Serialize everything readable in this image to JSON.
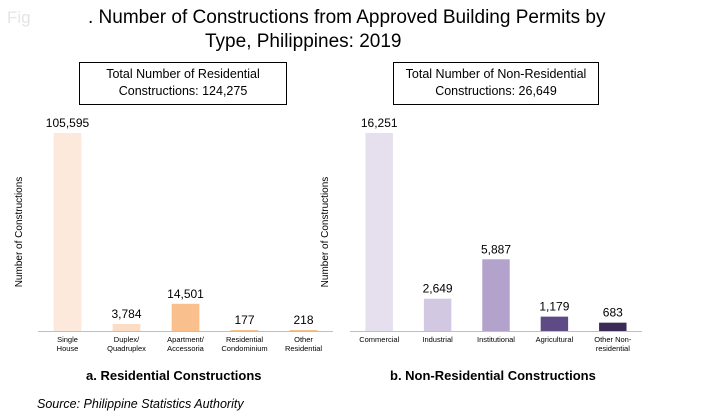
{
  "header": {
    "fig_prefix": "Fig",
    "title_line1": ". Number of Constructions from Approved Building Permits by",
    "title_line2": "Type, Philippines: 2019"
  },
  "boxes": {
    "residential_line1": "Total Number of Residential",
    "residential_line2": "Constructions: 124,275",
    "nonresidential_line1": "Total Number of Non-Residential",
    "nonresidential_line2": "Constructions:  26,649"
  },
  "captions": {
    "a": "a. Residential  Constructions",
    "b": "b. Non-Residential  Constructions"
  },
  "source": "Source: Philippine Statistics Authority",
  "chart_data": [
    {
      "type": "bar",
      "ylabel": "Number of Constructions",
      "categories": [
        [
          "Single",
          "House"
        ],
        [
          "Duplex/",
          "Quadruplex"
        ],
        [
          "Apartment/",
          "Accessoria"
        ],
        [
          "Residential",
          "Condominium"
        ],
        [
          "Other",
          "Residential"
        ]
      ],
      "values": [
        105595,
        3784,
        14501,
        177,
        218
      ],
      "labels": [
        "105,595",
        "3,784",
        "14,501",
        "177",
        "218"
      ],
      "colors": [
        "#fde9dc",
        "#fbdcc4",
        "#f9c08e",
        "#f9c08e",
        "#f9c08e"
      ]
    },
    {
      "type": "bar",
      "ylabel": "Number of Constructions",
      "categories": [
        [
          "Commercial"
        ],
        [
          "Industrial"
        ],
        [
          "Institutional"
        ],
        [
          "Agricultural"
        ],
        [
          "Other Non-",
          "residential"
        ]
      ],
      "values": [
        16251,
        2649,
        5887,
        1179,
        683
      ],
      "labels": [
        "16,251",
        "2,649",
        "5,887",
        "1,179",
        "683"
      ],
      "colors": [
        "#e6e0ee",
        "#d2c8e2",
        "#b2a2cc",
        "#5e4a85",
        "#3b2b57"
      ]
    }
  ]
}
